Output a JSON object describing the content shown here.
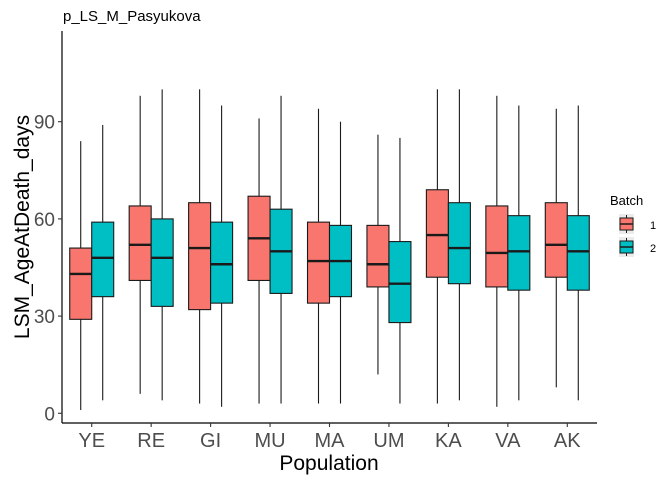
{
  "colors": {
    "batch1": "#F8766D",
    "batch2": "#00BFC4",
    "outline": "#1a1a1a",
    "axis": "#000000",
    "tick_text": "#4d4d4d"
  },
  "chart_data": {
    "type": "boxplot",
    "title": "p_LS_M_Pasyukova",
    "xlabel": "Population",
    "ylabel": "LSM_AgeAtDeath_days",
    "ylim": [
      -3,
      118
    ],
    "yticks": [
      0,
      30,
      60,
      90
    ],
    "grid": false,
    "legend": {
      "title": "Batch",
      "position": "right",
      "entries": [
        "1",
        "2"
      ]
    },
    "categories": [
      "YE",
      "RE",
      "GI",
      "MU",
      "MA",
      "UM",
      "KA",
      "VA",
      "AK"
    ],
    "series": [
      {
        "name": "1",
        "color": "#F8766D",
        "boxes": [
          {
            "min": 1,
            "q1": 29,
            "median": 43,
            "q3": 51,
            "max": 84
          },
          {
            "min": 6,
            "q1": 41,
            "median": 52,
            "q3": 64,
            "max": 98
          },
          {
            "min": 3,
            "q1": 32,
            "median": 51,
            "q3": 65,
            "max": 100
          },
          {
            "min": 3,
            "q1": 41,
            "median": 54,
            "q3": 67,
            "max": 91
          },
          {
            "min": 3,
            "q1": 34,
            "median": 47,
            "q3": 59,
            "max": 94
          },
          {
            "min": 12,
            "q1": 39,
            "median": 46,
            "q3": 58,
            "max": 86
          },
          {
            "min": 3,
            "q1": 42,
            "median": 55,
            "q3": 69,
            "max": 100
          },
          {
            "min": 2,
            "q1": 39,
            "median": 49.5,
            "q3": 64,
            "max": 98
          },
          {
            "min": 8,
            "q1": 42,
            "median": 52,
            "q3": 65,
            "max": 94
          }
        ]
      },
      {
        "name": "2",
        "color": "#00BFC4",
        "boxes": [
          {
            "min": 4,
            "q1": 36,
            "median": 48,
            "q3": 59,
            "max": 89
          },
          {
            "min": 4,
            "q1": 33,
            "median": 48,
            "q3": 60,
            "max": 100
          },
          {
            "min": 2,
            "q1": 34,
            "median": 46,
            "q3": 59,
            "max": 95
          },
          {
            "min": 3,
            "q1": 37,
            "median": 50,
            "q3": 63,
            "max": 98
          },
          {
            "min": 3,
            "q1": 36,
            "median": 47,
            "q3": 58,
            "max": 90
          },
          {
            "min": 3,
            "q1": 28,
            "median": 40,
            "q3": 53,
            "max": 85
          },
          {
            "min": 4,
            "q1": 40,
            "median": 51,
            "q3": 65,
            "max": 100
          },
          {
            "min": 4,
            "q1": 38,
            "median": 50,
            "q3": 61,
            "max": 95
          },
          {
            "min": 4,
            "q1": 38,
            "median": 50,
            "q3": 61,
            "max": 95
          }
        ]
      }
    ]
  }
}
